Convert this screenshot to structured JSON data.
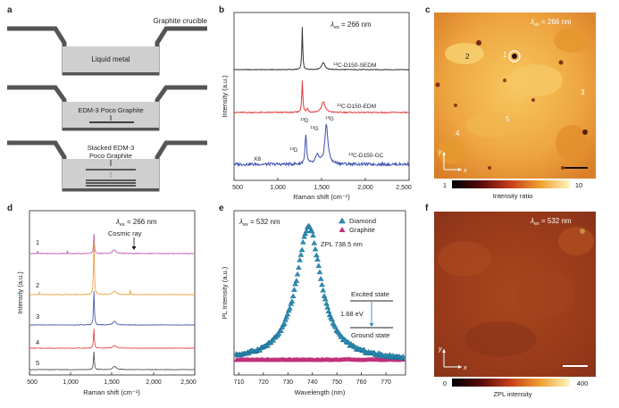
{
  "panel_labels": {
    "a": "a",
    "b": "b",
    "c": "c",
    "d": "d",
    "e": "e",
    "f": "f"
  },
  "panel_a": {
    "title": "Graphite crucible",
    "liquid_metal": "Liquid metal",
    "edm3_single": "EDM-3 Poco Graphite",
    "stacked_line1": "Stacked EDM-3",
    "stacked_line2": "Poco Graphite"
  },
  "panel_b": {
    "lambda": "λ",
    "lambda_sub": "ex",
    "lambda_value": " = 266 nm",
    "xlabel": "Raman shift (cm⁻¹)",
    "ylabel": "Intensity (a.u.)",
    "xticks": [
      "500",
      "1,000",
      "1,500",
      "2,000",
      "2,500"
    ],
    "x8": "X8",
    "iso": "13",
    "labels": {
      "sedm": "C-D150-SEDM",
      "edm": "C-D150-EDM",
      "gc": "C-D150-GC"
    },
    "peak_d": "D",
    "peak_g": "G",
    "colors": {
      "sedm": "#333333",
      "edm": "#e03a3a",
      "gc": "#3b4fb0"
    }
  },
  "panel_c": {
    "lambda": "λ",
    "lambda_sub": "ex",
    "lambda_value": " = 266 nm",
    "markers": [
      "1",
      "2",
      "3",
      "4",
      "5"
    ],
    "axis_x": "x",
    "axis_y": "y",
    "cbar_min": "1",
    "cbar_max": "10",
    "cbar_label": "Intensity ratio"
  },
  "panel_d": {
    "lambda": "λ",
    "lambda_sub": "ex",
    "lambda_value": " = 266 nm",
    "cosmic": "Cosmic ray",
    "xlabel": "Raman shift (cm⁻¹)",
    "ylabel": "Intensity (a.u.)",
    "xticks": [
      "500",
      "1,000",
      "1,500",
      "2,000",
      "2,500"
    ],
    "trace_labels": [
      "1",
      "2",
      "3",
      "4",
      "5"
    ],
    "colors": [
      "#c060b0",
      "#f0a040",
      "#4a5ab0",
      "#e04848",
      "#555555"
    ]
  },
  "panel_e": {
    "lambda": "λ",
    "lambda_sub": "ex",
    "lambda_value": " = 532 nm",
    "legend_diamond": "Diamond",
    "legend_graphite": "Graphite",
    "zpl": "ZPL 738.5 nm",
    "excited": "Excited state",
    "energy": "1.68 eV",
    "ground": "Ground state",
    "xlabel": "Wavelength (nm)",
    "ylabel": "PL Intensity (a.u.)",
    "xticks": [
      "710",
      "720",
      "730",
      "740",
      "750",
      "760",
      "770"
    ],
    "colors": {
      "diamond": "#2a8fb8",
      "graphite": "#c0307a"
    }
  },
  "panel_f": {
    "lambda": "λ",
    "lambda_sub": "ex",
    "lambda_value": " = 532 nm",
    "axis_x": "x",
    "axis_y": "y",
    "cbar_min": "0",
    "cbar_max": "400",
    "cbar_label": "ZPL intensity"
  }
}
